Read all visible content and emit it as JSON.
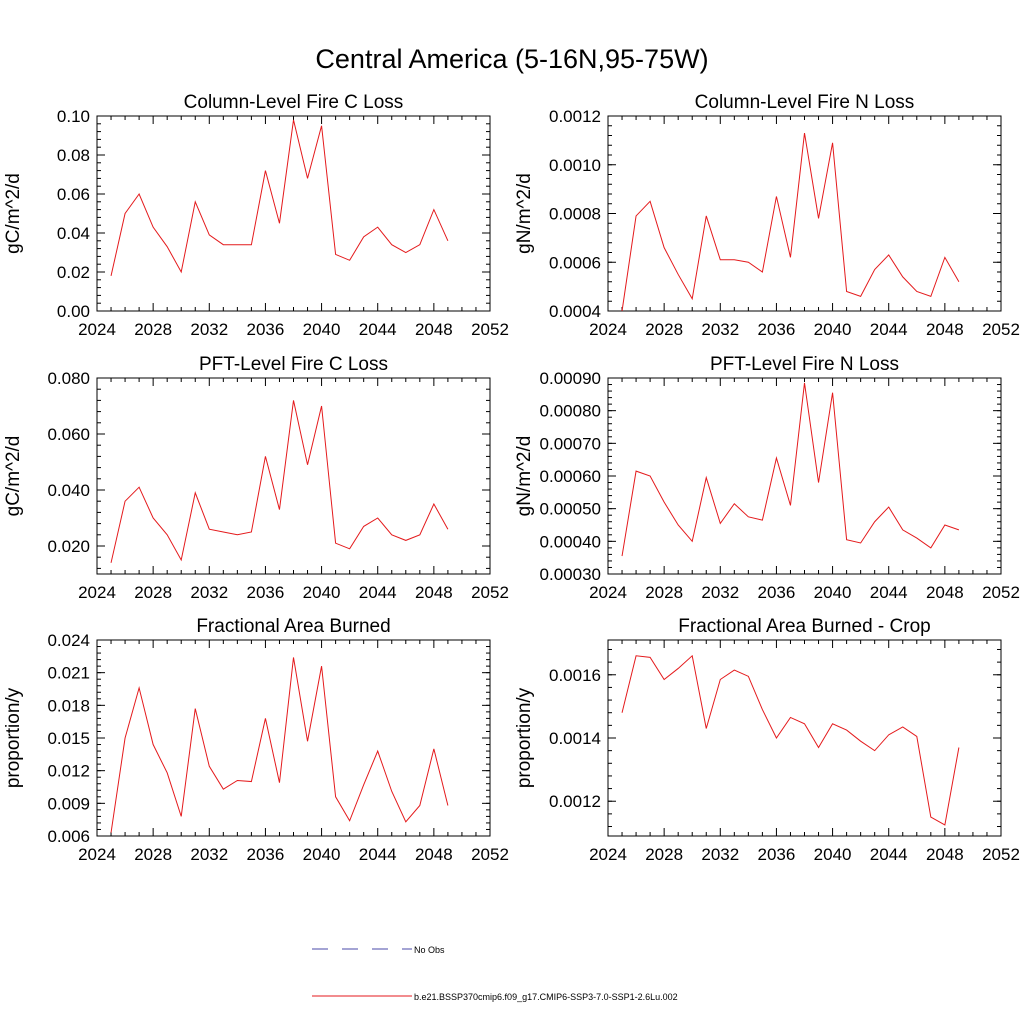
{
  "figure": {
    "title": "Central America (5-16N,95-75W)"
  },
  "legend": {
    "placement": "bottom-center",
    "entries": [
      {
        "label": "No Obs",
        "color": "#4a4aa8",
        "dash": true
      },
      {
        "label": "b.e21.BSSP370cmip6.f09_g17.CMIP6-SSP3-7.0-SSP1-2.6Lu.002",
        "color": "#e41a1c",
        "dash": false
      }
    ]
  },
  "chart_data": [
    {
      "type": "line",
      "title": "Column-Level Fire C Loss",
      "ylabel": "gC/m^2/d",
      "xlim": [
        2024,
        2052
      ],
      "ylim": [
        0,
        0.1
      ],
      "xticks": [
        "2024",
        "2028",
        "2032",
        "2036",
        "2040",
        "2044",
        "2048",
        "2052"
      ],
      "yticks": [
        "0.00",
        "0.02",
        "0.04",
        "0.06",
        "0.08",
        "0.10"
      ],
      "series": [
        {
          "color": "#e41a1c",
          "x": [
            2025,
            2026,
            2027,
            2028,
            2029,
            2030,
            2031,
            2032,
            2033,
            2034,
            2035,
            2036,
            2037,
            2038,
            2039,
            2040,
            2041,
            2042,
            2043,
            2044,
            2045,
            2046,
            2047,
            2048,
            2049
          ],
          "y": [
            0.018,
            0.05,
            0.06,
            0.043,
            0.033,
            0.02,
            0.056,
            0.039,
            0.034,
            0.034,
            0.034,
            0.072,
            0.045,
            0.098,
            0.068,
            0.095,
            0.029,
            0.026,
            0.038,
            0.043,
            0.034,
            0.03,
            0.034,
            0.052,
            0.036
          ]
        }
      ]
    },
    {
      "type": "line",
      "title": "Column-Level Fire N Loss",
      "ylabel": "gN/m^2/d",
      "xlim": [
        2024,
        2052
      ],
      "ylim": [
        0.0004,
        0.0012
      ],
      "xticks": [
        "2024",
        "2028",
        "2032",
        "2036",
        "2040",
        "2044",
        "2048",
        "2052"
      ],
      "yticks": [
        "0.0004",
        "0.0006",
        "0.0008",
        "0.0010",
        "0.0012"
      ],
      "series": [
        {
          "color": "#e41a1c",
          "x": [
            2025,
            2026,
            2027,
            2028,
            2029,
            2030,
            2031,
            2032,
            2033,
            2034,
            2035,
            2036,
            2037,
            2038,
            2039,
            2040,
            2041,
            2042,
            2043,
            2044,
            2045,
            2046,
            2047,
            2048,
            2049
          ],
          "y": [
            0.0004,
            0.00079,
            0.00085,
            0.00066,
            0.00055,
            0.00045,
            0.00079,
            0.00061,
            0.00061,
            0.0006,
            0.00056,
            0.00087,
            0.00062,
            0.00113,
            0.00078,
            0.00109,
            0.00048,
            0.00046,
            0.00057,
            0.00063,
            0.00054,
            0.00048,
            0.00046,
            0.00062,
            0.00052
          ]
        }
      ]
    },
    {
      "type": "line",
      "title": "PFT-Level Fire C Loss",
      "ylabel": "gC/m^2/d",
      "xlim": [
        2024,
        2052
      ],
      "ylim": [
        0.01,
        0.08
      ],
      "xticks": [
        "2024",
        "2028",
        "2032",
        "2036",
        "2040",
        "2044",
        "2048",
        "2052"
      ],
      "yticks": [
        "0.020",
        "0.040",
        "0.060",
        "0.080"
      ],
      "series": [
        {
          "color": "#e41a1c",
          "x": [
            2025,
            2026,
            2027,
            2028,
            2029,
            2030,
            2031,
            2032,
            2033,
            2034,
            2035,
            2036,
            2037,
            2038,
            2039,
            2040,
            2041,
            2042,
            2043,
            2044,
            2045,
            2046,
            2047,
            2048,
            2049
          ],
          "y": [
            0.014,
            0.036,
            0.041,
            0.03,
            0.024,
            0.015,
            0.039,
            0.026,
            0.025,
            0.024,
            0.025,
            0.052,
            0.033,
            0.072,
            0.049,
            0.07,
            0.021,
            0.019,
            0.027,
            0.03,
            0.024,
            0.022,
            0.024,
            0.035,
            0.026
          ]
        }
      ]
    },
    {
      "type": "line",
      "title": "PFT-Level Fire N Loss",
      "ylabel": "gN/m^2/d",
      "xlim": [
        2024,
        2052
      ],
      "ylim": [
        0.0003,
        0.0009
      ],
      "xticks": [
        "2024",
        "2028",
        "2032",
        "2036",
        "2040",
        "2044",
        "2048",
        "2052"
      ],
      "yticks": [
        "0.00030",
        "0.00040",
        "0.00050",
        "0.00060",
        "0.00070",
        "0.00080",
        "0.00090"
      ],
      "series": [
        {
          "color": "#e41a1c",
          "x": [
            2025,
            2026,
            2027,
            2028,
            2029,
            2030,
            2031,
            2032,
            2033,
            2034,
            2035,
            2036,
            2037,
            2038,
            2039,
            2040,
            2041,
            2042,
            2043,
            2044,
            2045,
            2046,
            2047,
            2048,
            2049
          ],
          "y": [
            0.000355,
            0.000615,
            0.0006,
            0.00052,
            0.00045,
            0.0004,
            0.000595,
            0.000455,
            0.000515,
            0.000475,
            0.000465,
            0.000655,
            0.00051,
            0.000885,
            0.00058,
            0.000855,
            0.000405,
            0.000395,
            0.00046,
            0.000505,
            0.000435,
            0.00041,
            0.00038,
            0.00045,
            0.000435
          ]
        }
      ]
    },
    {
      "type": "line",
      "title": "Fractional Area Burned",
      "ylabel": "proportion/y",
      "xlim": [
        2024,
        2052
      ],
      "ylim": [
        0.006,
        0.024
      ],
      "xticks": [
        "2024",
        "2028",
        "2032",
        "2036",
        "2040",
        "2044",
        "2048",
        "2052"
      ],
      "yticks": [
        "0.006",
        "0.009",
        "0.012",
        "0.015",
        "0.018",
        "0.021",
        "0.024"
      ],
      "series": [
        {
          "color": "#e41a1c",
          "x": [
            2025,
            2026,
            2027,
            2028,
            2029,
            2030,
            2031,
            2032,
            2033,
            2034,
            2035,
            2036,
            2037,
            2038,
            2039,
            2040,
            2041,
            2042,
            2043,
            2044,
            2045,
            2046,
            2047,
            2048,
            2049
          ],
          "y": [
            0.0063,
            0.015,
            0.0196,
            0.0144,
            0.0118,
            0.0078,
            0.0177,
            0.0124,
            0.0103,
            0.0111,
            0.011,
            0.0168,
            0.0109,
            0.0224,
            0.0147,
            0.0216,
            0.0096,
            0.0074,
            0.0107,
            0.0138,
            0.0101,
            0.0073,
            0.0088,
            0.014,
            0.0088
          ]
        }
      ]
    },
    {
      "type": "line",
      "title": "Fractional Area Burned - Crop",
      "ylabel": "proportion/y",
      "xlim": [
        2024,
        2052
      ],
      "ylim": [
        0.00109,
        0.00171
      ],
      "xticks": [
        "2024",
        "2028",
        "2032",
        "2036",
        "2040",
        "2044",
        "2048",
        "2052"
      ],
      "yticks": [
        "0.0012",
        "0.0014",
        "0.0016"
      ],
      "series": [
        {
          "color": "#e41a1c",
          "x": [
            2025,
            2026,
            2027,
            2028,
            2029,
            2030,
            2031,
            2032,
            2033,
            2034,
            2035,
            2036,
            2037,
            2038,
            2039,
            2040,
            2041,
            2042,
            2043,
            2044,
            2045,
            2046,
            2047,
            2048,
            2049
          ],
          "y": [
            0.00148,
            0.00166,
            0.001655,
            0.001585,
            0.00162,
            0.00166,
            0.00143,
            0.001585,
            0.001615,
            0.001595,
            0.00149,
            0.0014,
            0.001465,
            0.001445,
            0.00137,
            0.001445,
            0.001425,
            0.00139,
            0.00136,
            0.00141,
            0.001435,
            0.001405,
            0.00115,
            0.001125,
            0.00137
          ]
        }
      ]
    }
  ]
}
